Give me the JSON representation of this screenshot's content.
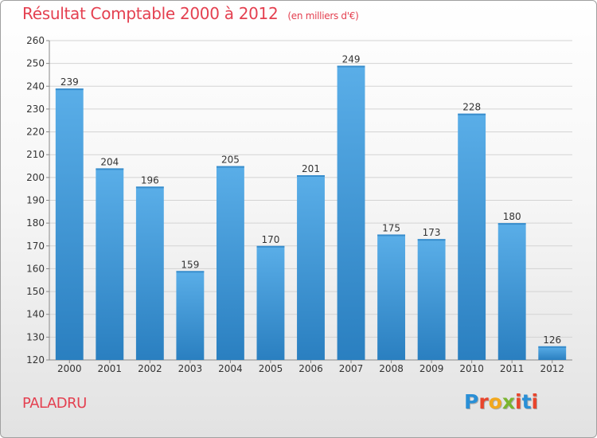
{
  "header": {
    "title": "Résultat Comptable 2000 à 2012",
    "subtitle": "(en milliers d'€)"
  },
  "footer": {
    "commune": "PALADRU",
    "brand": "Proxiti",
    "brand_colors": [
      "#2a8fd6",
      "#e8452c",
      "#f2a81d",
      "#7ab530",
      "#e8452c",
      "#2a8fd6",
      "#e8452c"
    ]
  },
  "chart_data": {
    "type": "bar",
    "categories": [
      "2000",
      "2001",
      "2002",
      "2003",
      "2004",
      "2005",
      "2006",
      "2007",
      "2008",
      "2009",
      "2010",
      "2011",
      "2012"
    ],
    "values": [
      239,
      204,
      196,
      159,
      205,
      170,
      201,
      249,
      175,
      173,
      228,
      180,
      126
    ],
    "ylim": [
      120,
      260
    ],
    "yticks": [
      120,
      130,
      140,
      150,
      160,
      170,
      180,
      190,
      200,
      210,
      220,
      230,
      240,
      250,
      260
    ],
    "grid": true,
    "data_labels": true,
    "bar_color_top": "#5aaee8",
    "bar_color_bottom": "#2a7fc0",
    "title_color": "#e44050"
  }
}
